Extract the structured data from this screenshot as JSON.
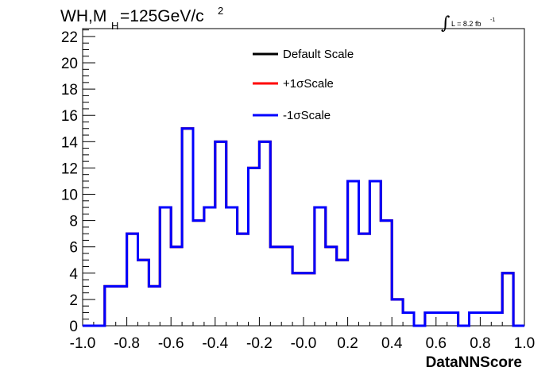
{
  "chart_data": {
    "type": "histogram",
    "title_main": "WH,M",
    "title_sub": "H",
    "title_rest": "=125GeV/c",
    "title_sup": "2",
    "lumi_integral": "∫",
    "lumi_text": "L = 8.2 fb",
    "lumi_sup": "-1",
    "xlabel": "DataNNScore",
    "xlim": [
      -1.0,
      1.0
    ],
    "ylim": [
      0,
      22.6
    ],
    "x_ticks": [
      {
        "value": -1.0,
        "label": "-1.0"
      },
      {
        "value": -0.8,
        "label": "-0.8"
      },
      {
        "value": -0.6,
        "label": "-0.6"
      },
      {
        "value": -0.4,
        "label": "-0.4"
      },
      {
        "value": -0.2,
        "label": "-0.2"
      },
      {
        "value": 0.0,
        "label": "-0.0"
      },
      {
        "value": 0.2,
        "label": "0.2"
      },
      {
        "value": 0.4,
        "label": "0.4"
      },
      {
        "value": 0.6,
        "label": "0.6"
      },
      {
        "value": 0.8,
        "label": "0.8"
      },
      {
        "value": 1.0,
        "label": "1.0"
      }
    ],
    "y_ticks": [
      {
        "value": 0,
        "label": "0"
      },
      {
        "value": 2,
        "label": "2"
      },
      {
        "value": 4,
        "label": "4"
      },
      {
        "value": 6,
        "label": "6"
      },
      {
        "value": 8,
        "label": "8"
      },
      {
        "value": 10,
        "label": "10"
      },
      {
        "value": 12,
        "label": "12"
      },
      {
        "value": 14,
        "label": "14"
      },
      {
        "value": 16,
        "label": "16"
      },
      {
        "value": 18,
        "label": "18"
      },
      {
        "value": 20,
        "label": "20"
      },
      {
        "value": 22,
        "label": "22"
      }
    ],
    "bin_edges_start": -1.0,
    "bin_width": 0.05,
    "series": [
      {
        "name": "Default Scale",
        "color": "#000000",
        "values": [
          0,
          0,
          3,
          3,
          7,
          5,
          3,
          9,
          6,
          15,
          8,
          9,
          14,
          9,
          7,
          12,
          14,
          6,
          6,
          4,
          4,
          9,
          6,
          5,
          11,
          7,
          11,
          8,
          2,
          1,
          0,
          1,
          1,
          1,
          0,
          1,
          1,
          1,
          4,
          0
        ]
      },
      {
        "name": "+1σScale",
        "color": "#ff0000",
        "values": [
          0,
          0,
          3,
          3,
          7,
          5,
          3,
          9,
          6,
          15,
          8,
          9,
          14,
          9,
          7,
          12,
          14,
          6,
          6,
          4,
          4,
          9,
          6,
          5,
          11,
          7,
          11,
          8,
          2,
          1,
          0,
          1,
          1,
          1,
          0,
          1,
          1,
          1,
          4,
          0
        ]
      },
      {
        "name": "-1σScale",
        "color": "#0000ff",
        "values": [
          0,
          0,
          3,
          3,
          7,
          5,
          3,
          9,
          6,
          15,
          8,
          9,
          14,
          9,
          7,
          12,
          14,
          6,
          6,
          4,
          4,
          9,
          6,
          5,
          11,
          7,
          11,
          8,
          2,
          1,
          0,
          1,
          1,
          1,
          0,
          1,
          1,
          1,
          4,
          0
        ]
      }
    ]
  }
}
